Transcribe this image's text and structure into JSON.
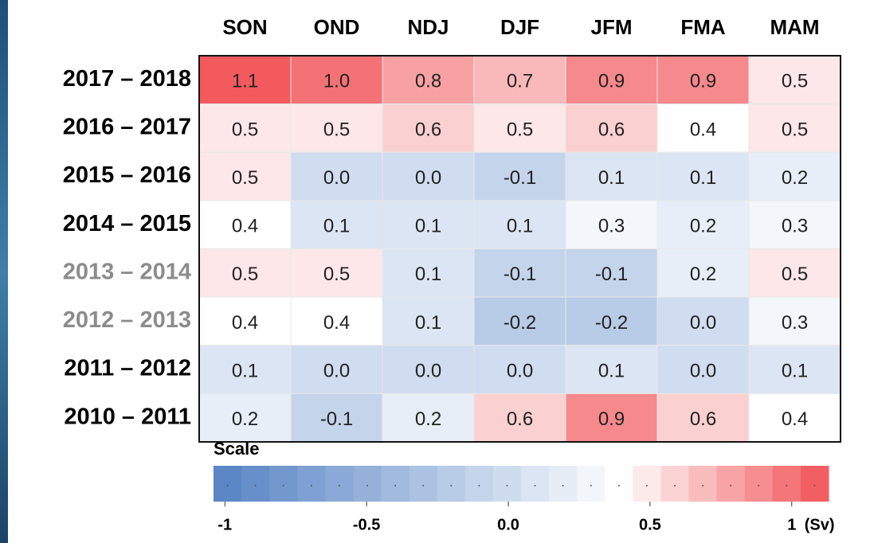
{
  "chart_data": {
    "type": "heatmap",
    "columns": [
      "SON",
      "OND",
      "NDJ",
      "DJF",
      "JFM",
      "FMA",
      "MAM"
    ],
    "rows": [
      "2017 – 2018",
      "2016 – 2017",
      "2015 – 2016",
      "2014 – 2015",
      "2013 – 2014",
      "2012 – 2013",
      "2011 – 2012",
      "2010 – 2011"
    ],
    "row_label_colors": [
      "#000000",
      "#000000",
      "#000000",
      "#000000",
      "#8c8c8c",
      "#8c8c8c",
      "#000000",
      "#000000"
    ],
    "values": [
      [
        1.1,
        1.0,
        0.8,
        0.7,
        0.9,
        0.9,
        0.5
      ],
      [
        0.5,
        0.5,
        0.6,
        0.5,
        0.6,
        0.4,
        0.5
      ],
      [
        0.5,
        0.0,
        0.0,
        -0.1,
        0.1,
        0.1,
        0.2
      ],
      [
        0.4,
        0.1,
        0.1,
        0.1,
        0.3,
        0.2,
        0.3
      ],
      [
        0.5,
        0.5,
        0.1,
        -0.1,
        -0.1,
        0.2,
        0.5
      ],
      [
        0.4,
        0.4,
        0.1,
        -0.2,
        -0.2,
        0.0,
        0.3
      ],
      [
        0.1,
        0.0,
        0.0,
        0.0,
        0.1,
        0.0,
        0.1
      ],
      [
        0.2,
        -0.1,
        0.2,
        0.6,
        0.9,
        0.6,
        0.4
      ]
    ],
    "value_labels": [
      [
        "1.1",
        "1.0",
        "0.8",
        "0.7",
        "0.9",
        "0.9",
        "0.5"
      ],
      [
        "0.5",
        "0.5",
        "0.6",
        "0.5",
        "0.6",
        "0.4",
        "0.5"
      ],
      [
        "0.5",
        "0.0",
        "0.0",
        "-0.1",
        "0.1",
        "0.1",
        "0.2"
      ],
      [
        "0.4",
        "0.1",
        "0.1",
        "0.1",
        "0.3",
        "0.2",
        "0.3"
      ],
      [
        "0.5",
        "0.5",
        "0.1",
        "-0.1",
        "-0.1",
        "0.2",
        "0.5"
      ],
      [
        "0.4",
        "0.4",
        "0.1",
        "-0.2",
        "-0.2",
        "0.0",
        "0.3"
      ],
      [
        "0.1",
        "0.0",
        "0.0",
        "0.0",
        "0.1",
        "0.0",
        "0.1"
      ],
      [
        "0.2",
        "-0.1",
        "0.2",
        "0.6",
        "0.9",
        "0.6",
        "0.4"
      ]
    ],
    "cmap": {
      "colors": [
        "#5a86c6",
        "#ffffff",
        "#f25a5e"
      ],
      "stops": [
        -1,
        0.4,
        1.1
      ]
    },
    "colorbar": {
      "title": "Scale",
      "lim": [
        -1.04,
        1.13
      ],
      "ticks": [
        -1,
        -0.5,
        {
          "value": 0,
          "label": "0.0"
        },
        0.5,
        1
      ],
      "unit": "(Sv)"
    }
  }
}
